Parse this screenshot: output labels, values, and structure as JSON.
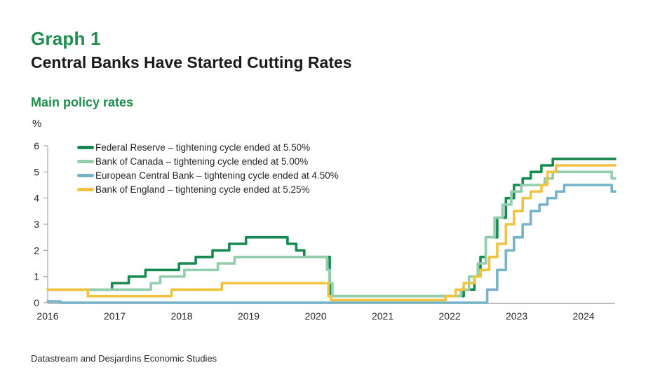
{
  "header": {
    "graph_label": "Graph 1",
    "title": "Central Banks Have Started Cutting Rates"
  },
  "subtitle": "Main policy rates",
  "unit": "%",
  "source": "Datastream and Desjardins Economic Studies",
  "chart_data": {
    "type": "line",
    "step": true,
    "title": "Main policy rates",
    "ylabel": "%",
    "xlabel": "",
    "grid": false,
    "legend_position": "top-left-inside",
    "axis_color": "#a6a6a6",
    "x_range": [
      2016,
      2024.47
    ],
    "y_range": [
      0,
      6
    ],
    "x_ticks": [
      2016,
      2017,
      2018,
      2019,
      2020,
      2021,
      2022,
      2023,
      2024
    ],
    "y_ticks": [
      0,
      1,
      2,
      3,
      4,
      5,
      6
    ],
    "series": [
      {
        "name": "federal-reserve",
        "label": "Federal Reserve – tightening cycle ended at 5.50%",
        "color": "#168a50",
        "points": [
          [
            2016.0,
            0.5
          ],
          [
            2016.96,
            0.75
          ],
          [
            2017.21,
            1.0
          ],
          [
            2017.46,
            1.25
          ],
          [
            2017.96,
            1.5
          ],
          [
            2018.21,
            1.75
          ],
          [
            2018.46,
            2.0
          ],
          [
            2018.71,
            2.25
          ],
          [
            2018.96,
            2.5
          ],
          [
            2019.58,
            2.25
          ],
          [
            2019.71,
            2.0
          ],
          [
            2019.83,
            1.75
          ],
          [
            2020.21,
            0.25
          ],
          [
            2022.21,
            0.5
          ],
          [
            2022.37,
            1.0
          ],
          [
            2022.46,
            1.75
          ],
          [
            2022.54,
            2.5
          ],
          [
            2022.71,
            3.25
          ],
          [
            2022.84,
            4.0
          ],
          [
            2022.96,
            4.5
          ],
          [
            2023.09,
            4.75
          ],
          [
            2023.21,
            5.0
          ],
          [
            2023.37,
            5.25
          ],
          [
            2023.54,
            5.5
          ],
          [
            2024.47,
            5.5
          ]
        ]
      },
      {
        "name": "bank-of-canada",
        "label": "Bank of Canada – tightening cycle ended at 5.00%",
        "color": "#93cdac",
        "points": [
          [
            2016.0,
            0.5
          ],
          [
            2017.54,
            0.75
          ],
          [
            2017.68,
            1.0
          ],
          [
            2018.04,
            1.25
          ],
          [
            2018.54,
            1.5
          ],
          [
            2018.79,
            1.75
          ],
          [
            2020.17,
            1.25
          ],
          [
            2020.21,
            0.75
          ],
          [
            2020.25,
            0.25
          ],
          [
            2022.17,
            0.5
          ],
          [
            2022.29,
            1.0
          ],
          [
            2022.42,
            1.5
          ],
          [
            2022.54,
            2.5
          ],
          [
            2022.67,
            3.25
          ],
          [
            2022.79,
            3.75
          ],
          [
            2022.92,
            4.25
          ],
          [
            2023.07,
            4.5
          ],
          [
            2023.42,
            4.75
          ],
          [
            2023.54,
            5.0
          ],
          [
            2024.42,
            4.75
          ],
          [
            2024.47,
            4.75
          ]
        ]
      },
      {
        "name": "european-central-bank",
        "label": "European Central Bank – tightening cycle ended at 4.50%",
        "color": "#74b3c9",
        "points": [
          [
            2016.0,
            0.05
          ],
          [
            2016.19,
            0.0
          ],
          [
            2022.56,
            0.5
          ],
          [
            2022.71,
            1.25
          ],
          [
            2022.84,
            2.0
          ],
          [
            2022.96,
            2.5
          ],
          [
            2023.09,
            3.0
          ],
          [
            2023.21,
            3.5
          ],
          [
            2023.34,
            3.75
          ],
          [
            2023.46,
            4.0
          ],
          [
            2023.59,
            4.25
          ],
          [
            2023.71,
            4.5
          ],
          [
            2024.42,
            4.25
          ],
          [
            2024.47,
            4.25
          ]
        ]
      },
      {
        "name": "bank-of-england",
        "label": "Bank of England – tightening cycle ended at 5.25%",
        "color": "#f0c440",
        "points": [
          [
            2016.0,
            0.5
          ],
          [
            2016.6,
            0.25
          ],
          [
            2017.85,
            0.5
          ],
          [
            2018.6,
            0.75
          ],
          [
            2020.19,
            0.25
          ],
          [
            2020.23,
            0.1
          ],
          [
            2021.94,
            0.25
          ],
          [
            2022.09,
            0.5
          ],
          [
            2022.21,
            0.75
          ],
          [
            2022.37,
            1.0
          ],
          [
            2022.46,
            1.25
          ],
          [
            2022.59,
            1.75
          ],
          [
            2022.71,
            2.25
          ],
          [
            2022.84,
            3.0
          ],
          [
            2022.96,
            3.5
          ],
          [
            2023.09,
            4.0
          ],
          [
            2023.21,
            4.25
          ],
          [
            2023.37,
            4.5
          ],
          [
            2023.46,
            5.0
          ],
          [
            2023.59,
            5.25
          ],
          [
            2024.47,
            5.25
          ]
        ]
      }
    ]
  }
}
